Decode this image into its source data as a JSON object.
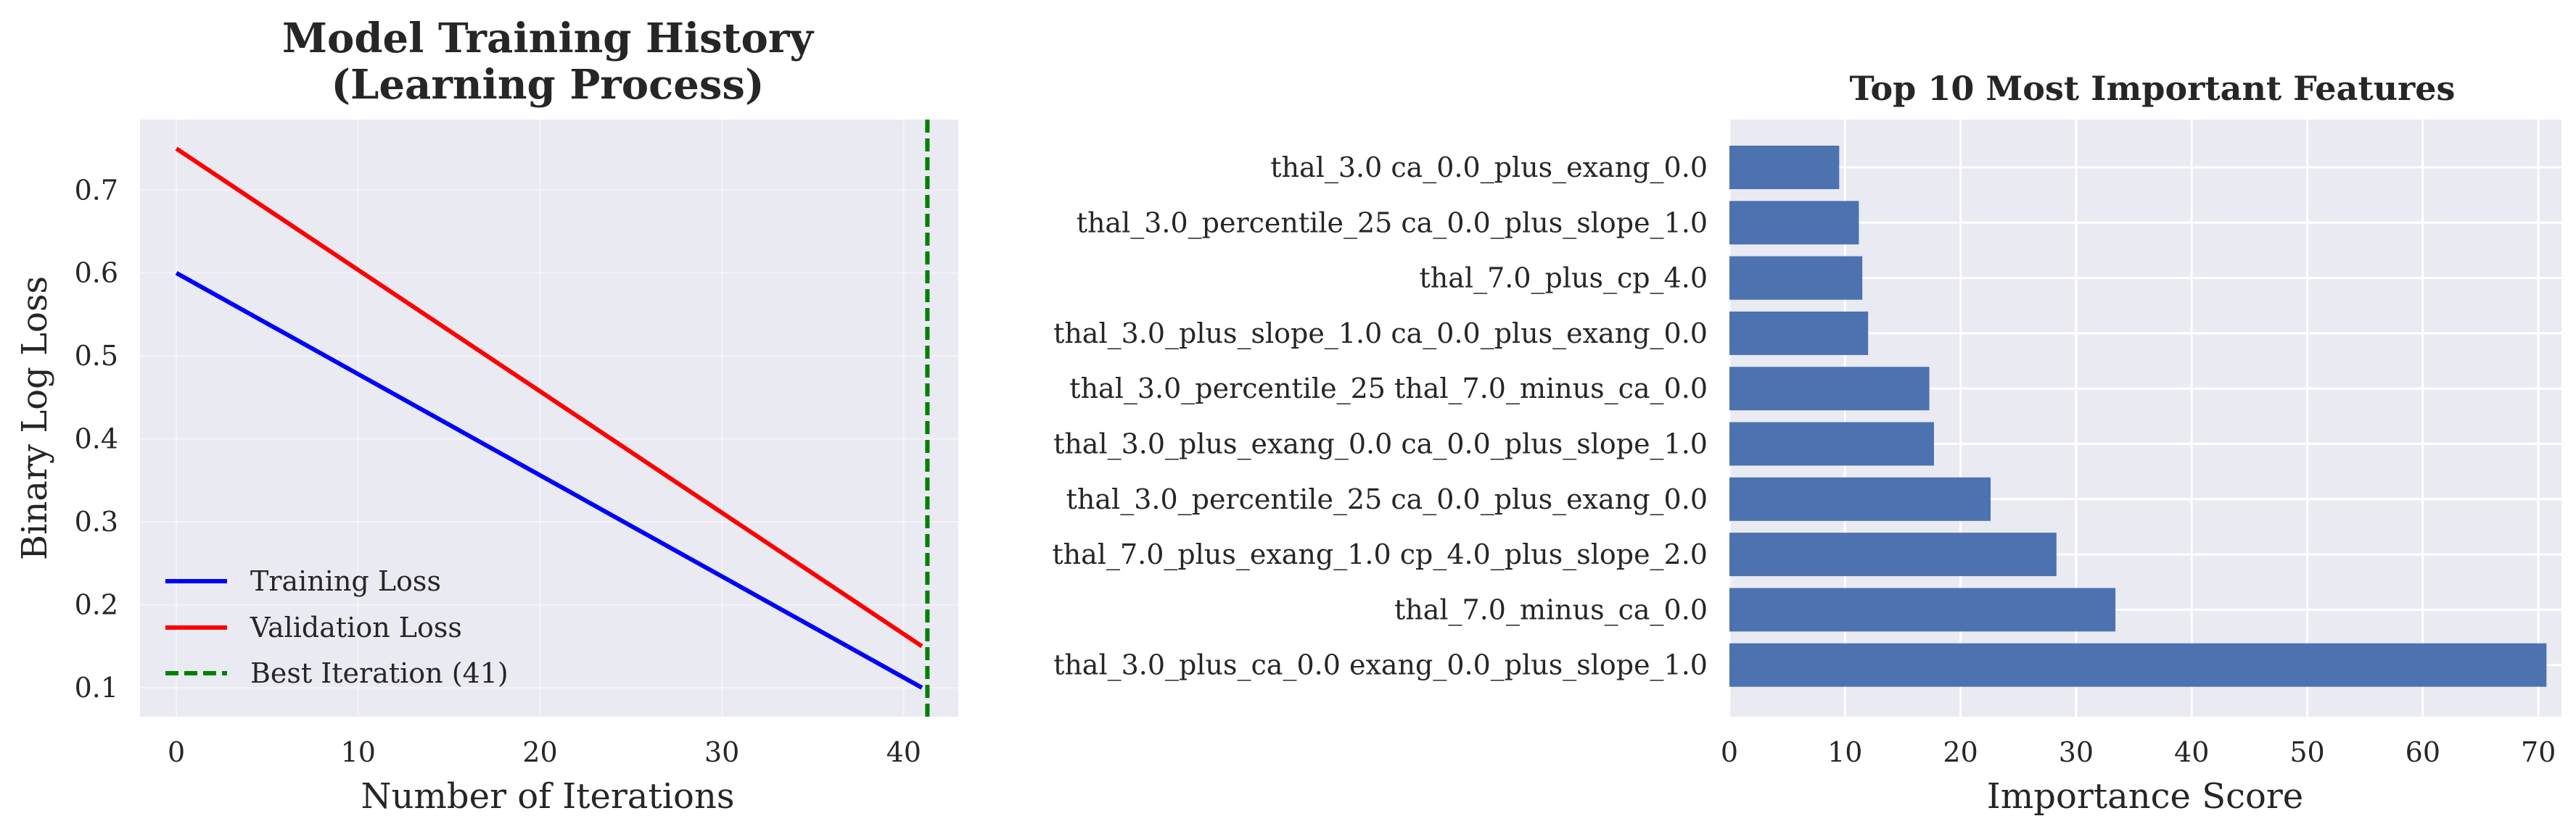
{
  "chart_data": [
    {
      "type": "line",
      "title_line1": "Model Training History",
      "title_line2": "(Learning Process)",
      "xlabel": "Number of Iterations",
      "ylabel": "Binary Log Loss",
      "xlim": [
        -2,
        43
      ],
      "ylim": [
        0.065,
        0.785
      ],
      "xticks": [
        0,
        10,
        20,
        30,
        40
      ],
      "yticks": [
        0.1,
        0.2,
        0.3,
        0.4,
        0.5,
        0.6,
        0.7
      ],
      "grid": true,
      "legend_position": "lower-left",
      "series": [
        {
          "name": "Training Loss",
          "color": "#0000ff",
          "x": [
            0,
            41
          ],
          "y": [
            0.6,
            0.1
          ]
        },
        {
          "name": "Validation Loss",
          "color": "#ff0000",
          "x": [
            0,
            41
          ],
          "y": [
            0.75,
            0.15
          ]
        }
      ],
      "vline": {
        "name": "Best Iteration (41)",
        "x": 41.3,
        "color": "#008000",
        "style": "dashed"
      }
    },
    {
      "type": "bar",
      "orientation": "horizontal",
      "title": "Top 10 Most Important Features",
      "xlabel": "Importance Score",
      "ylabel": "",
      "xlim": [
        0,
        72
      ],
      "xticks": [
        0,
        10,
        20,
        30,
        40,
        50,
        60,
        70
      ],
      "grid": true,
      "bar_color": "#4c72b0",
      "categories": [
        "thal_3.0 ca_0.0_plus_exang_0.0",
        "thal_3.0_percentile_25 ca_0.0_plus_slope_1.0",
        "thal_7.0_plus_cp_4.0",
        "thal_3.0_plus_slope_1.0 ca_0.0_plus_exang_0.0",
        "thal_3.0_percentile_25 thal_7.0_minus_ca_0.0",
        "thal_3.0_plus_exang_0.0 ca_0.0_plus_slope_1.0",
        "thal_3.0_percentile_25 ca_0.0_plus_exang_0.0",
        "thal_7.0_plus_exang_1.0 cp_4.0_plus_slope_2.0",
        "thal_7.0_minus_ca_0.0",
        "thal_3.0_plus_ca_0.0 exang_0.0_plus_slope_1.0"
      ],
      "values": [
        9.5,
        11.2,
        11.5,
        12.0,
        17.3,
        17.7,
        22.6,
        28.3,
        33.4,
        70.7
      ]
    }
  ]
}
